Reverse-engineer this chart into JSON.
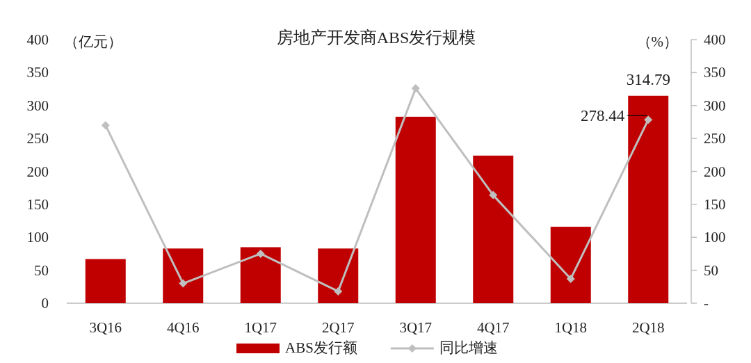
{
  "chart_data": {
    "type": "bar",
    "title": "房地产开发商ABS发行规模",
    "ylabel": "（亿元）",
    "y2label": "（%）",
    "categories": [
      "3Q16",
      "4Q16",
      "1Q17",
      "2Q17",
      "3Q17",
      "4Q17",
      "1Q18",
      "2Q18"
    ],
    "series": [
      {
        "name": "ABS发行额",
        "color": "#c00000",
        "values": [
          67,
          83,
          85,
          83,
          283,
          224,
          116,
          314.79
        ],
        "value_labels": [
          null,
          null,
          null,
          null,
          null,
          null,
          null,
          "314.79"
        ]
      },
      {
        "name": "同比增速",
        "type": "line",
        "axis": "y2",
        "color": "#bfbfbf",
        "marker": "diamond",
        "values": [
          270,
          30,
          75,
          18,
          326,
          164,
          37,
          278.44
        ],
        "value_labels": [
          null,
          null,
          null,
          null,
          null,
          null,
          null,
          "278.44"
        ]
      }
    ],
    "ylim": [
      0,
      400
    ],
    "yticks": [
      0,
      50,
      100,
      150,
      200,
      250,
      300,
      350,
      400
    ],
    "y2lim": [
      0,
      400
    ],
    "y2ticks": [
      {
        "value": 0,
        "label": "-"
      },
      50,
      100,
      150,
      200,
      250,
      300,
      350,
      400
    ],
    "grid": false,
    "legend": "bottom"
  }
}
